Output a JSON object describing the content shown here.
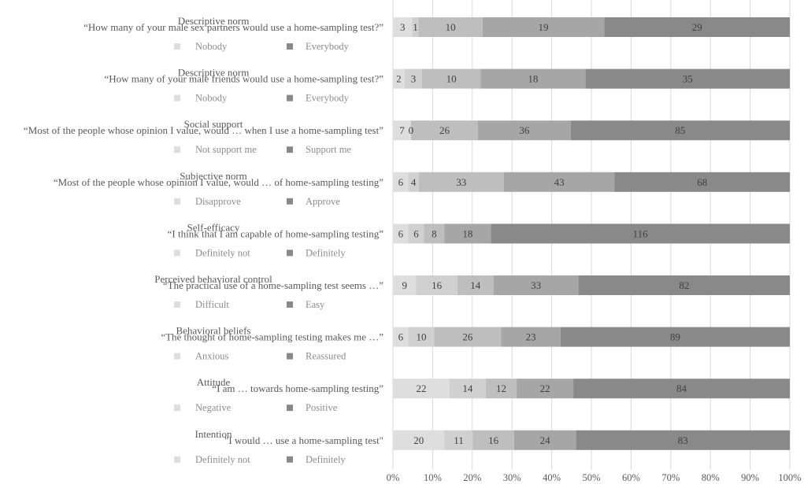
{
  "chart_data": {
    "type": "bar",
    "orientation": "horizontal",
    "stacked": "percent",
    "x_tick_labels": [
      "0%",
      "10%",
      "20%",
      "30%",
      "40%",
      "50%",
      "60%",
      "70%",
      "80%",
      "90%",
      "100%"
    ],
    "xlim": [
      0,
      100
    ],
    "grid": true,
    "colors": [
      "#dedede",
      "#d0d0d0",
      "#bebebe",
      "#a6a6a6",
      "#898989"
    ],
    "categories": [
      {
        "title": "Descriptive norm",
        "question": "“How many of your male sex partners would use a home-sampling test?”",
        "low_label": "Nobody",
        "high_label": "Everybody",
        "values": [
          3,
          1,
          10,
          19,
          29
        ]
      },
      {
        "title": "Descriptive norm",
        "question": "“How many of your male friends would use a home-sampling test?”",
        "low_label": "Nobody",
        "high_label": "Everybody",
        "values": [
          2,
          3,
          10,
          18,
          35
        ]
      },
      {
        "title": "Social support",
        "question": "“Most of the people whose opinion I value, would … when I use a home-sampling test”",
        "low_label": "Not support me",
        "high_label": "Support me",
        "values": [
          7,
          0,
          26,
          36,
          85
        ]
      },
      {
        "title": "Subjective norm",
        "question": "“Most of the people whose opinion I value, would … of home-sampling testing”",
        "low_label": "Disapprove",
        "high_label": "Approve",
        "values": [
          6,
          4,
          33,
          43,
          68
        ]
      },
      {
        "title": "Self-efficacy",
        "question": "“I think that I am capable of home-sampling testing”",
        "low_label": "Definitely not",
        "high_label": "Definitely",
        "values": [
          6,
          6,
          8,
          18,
          116
        ]
      },
      {
        "title": "Perceived behavioral control",
        "question": "“The practical use of a home-sampling test seems …”",
        "low_label": "Difficult",
        "high_label": "Easy",
        "values": [
          9,
          16,
          14,
          33,
          82
        ]
      },
      {
        "title": "Behavioral beliefs",
        "question": "“The thought of home-sampling testing makes me …”",
        "low_label": "Anxious",
        "high_label": "Reassured",
        "values": [
          6,
          10,
          26,
          23,
          89
        ]
      },
      {
        "title": "Attitude",
        "question": "“I am … towards home-sampling testing”",
        "low_label": "Negative",
        "high_label": "Positive",
        "values": [
          22,
          14,
          12,
          22,
          84
        ]
      },
      {
        "title": "Intention",
        "question": "\"I would … use a home-sampling test\"",
        "low_label": "Definitely not",
        "high_label": "Definitely",
        "values": [
          20,
          11,
          16,
          24,
          83
        ]
      }
    ]
  }
}
